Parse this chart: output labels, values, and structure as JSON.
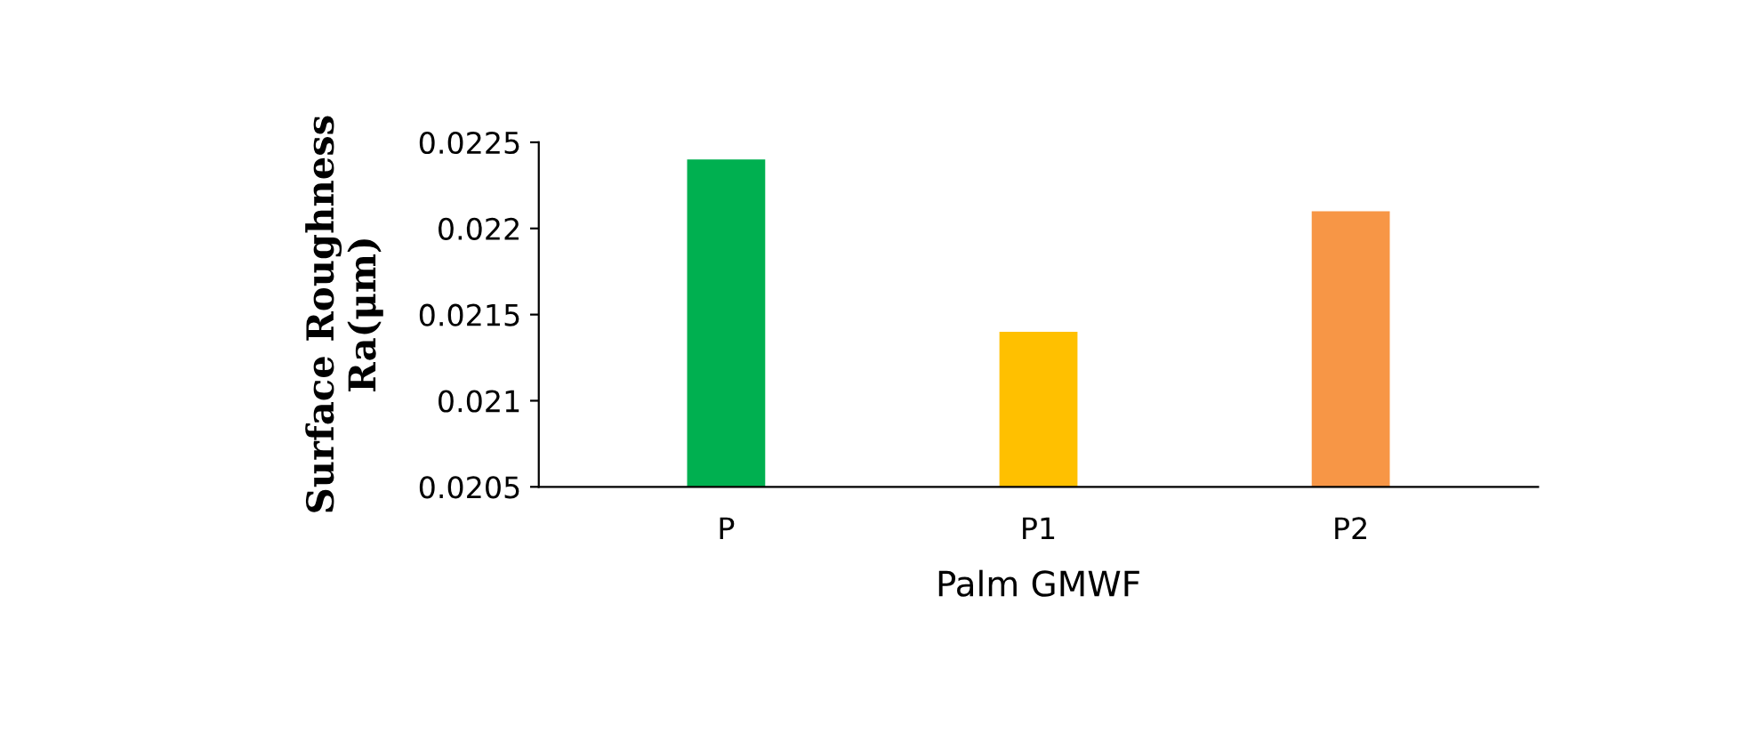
{
  "chart_data": {
    "type": "bar",
    "xlabel": "Palm GMWF",
    "ylabel": "Surface Roughness\nRa(μm)",
    "categories": [
      "P",
      "P1",
      "P2"
    ],
    "values": [
      0.0224,
      0.0214,
      0.0221
    ],
    "colors": [
      "#00b050",
      "#ffc000",
      "#f79646"
    ],
    "ylim": [
      0.0205,
      0.0225
    ],
    "yticks": [
      {
        "value": 0.0205,
        "label": "0.0205"
      },
      {
        "value": 0.021,
        "label": "0.021"
      },
      {
        "value": 0.0215,
        "label": "0.0215"
      },
      {
        "value": 0.022,
        "label": "0.022"
      },
      {
        "value": 0.0225,
        "label": "0.0225"
      }
    ],
    "grid": false
  }
}
